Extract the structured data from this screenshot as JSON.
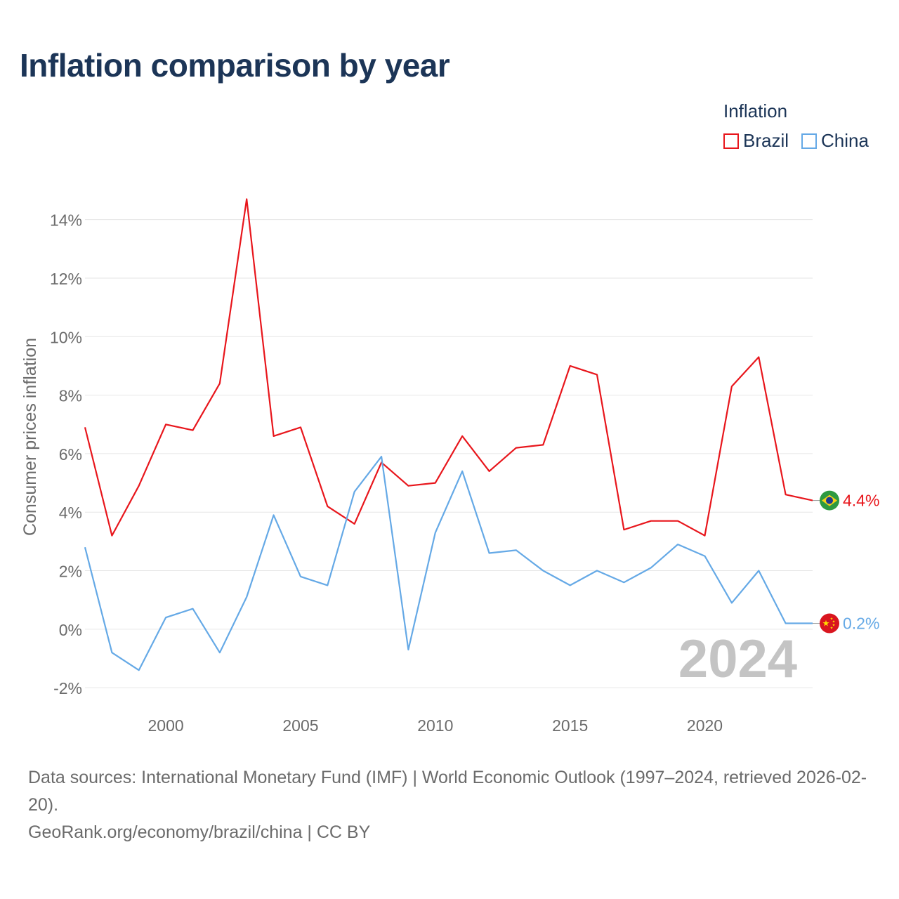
{
  "title": "Inflation comparison by year",
  "legend": {
    "title": "Inflation",
    "items": [
      {
        "label": "Brazil",
        "color": "#e8161c"
      },
      {
        "label": "China",
        "color": "#65a9e6"
      }
    ]
  },
  "chart_data": {
    "type": "line",
    "title": "Inflation comparison by year",
    "xlabel": "",
    "ylabel": "Consumer prices inflation",
    "xlim": [
      1997,
      2024
    ],
    "ylim": [
      -2.5,
      15
    ],
    "x_ticks": [
      2000,
      2005,
      2010,
      2015,
      2020
    ],
    "y_ticks": [
      -2,
      0,
      2,
      4,
      6,
      8,
      10,
      12,
      14
    ],
    "y_tick_labels": [
      "-2%",
      "0%",
      "2%",
      "4%",
      "6%",
      "8%",
      "10%",
      "12%",
      "14%"
    ],
    "grid": true,
    "legend_position": "top-right",
    "x": [
      1997,
      1998,
      1999,
      2000,
      2001,
      2002,
      2003,
      2004,
      2005,
      2006,
      2007,
      2008,
      2009,
      2010,
      2011,
      2012,
      2013,
      2014,
      2015,
      2016,
      2017,
      2018,
      2019,
      2020,
      2021,
      2022,
      2023,
      2024
    ],
    "series": [
      {
        "name": "Brazil",
        "color": "#e8161c",
        "values": [
          6.9,
          3.2,
          4.9,
          7.0,
          6.8,
          8.4,
          14.7,
          6.6,
          6.9,
          4.2,
          3.6,
          5.7,
          4.9,
          5.0,
          6.6,
          5.4,
          6.2,
          6.3,
          9.0,
          8.7,
          3.4,
          3.7,
          3.7,
          3.2,
          8.3,
          9.3,
          4.6,
          4.4
        ],
        "end_label": "4.4%",
        "flag": "brazil-flag"
      },
      {
        "name": "China",
        "color": "#65a9e6",
        "values": [
          2.8,
          -0.8,
          -1.4,
          0.4,
          0.7,
          -0.8,
          1.1,
          3.9,
          1.8,
          1.5,
          4.7,
          5.9,
          -0.7,
          3.3,
          5.4,
          2.6,
          2.7,
          2.0,
          1.5,
          2.0,
          1.6,
          2.1,
          2.9,
          2.5,
          0.9,
          2.0,
          0.2,
          0.2
        ],
        "end_label": "0.2%",
        "flag": "china-flag"
      }
    ],
    "watermark_year": "2024"
  },
  "footer": {
    "sources": "Data sources: International Monetary Fund (IMF) | World Economic Outlook (1997–2024, retrieved 2026-02-20).",
    "credit": "GeoRank.org/economy/brazil/china | CC BY"
  }
}
